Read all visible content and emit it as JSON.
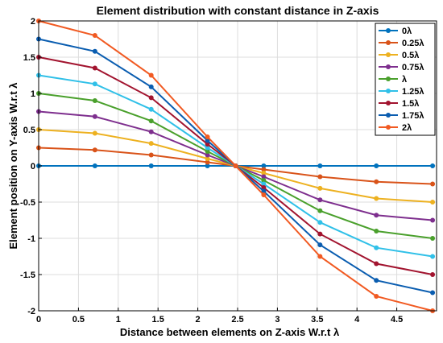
{
  "chart_data": {
    "type": "line",
    "title": "Element distribution with constant distance in Z-axis",
    "xlabel": "Distance between elements on Z-axis W.r.t λ",
    "ylabel": "Element position on Y-axis W.r.t λ",
    "xlim": [
      0,
      5
    ],
    "ylim": [
      -2,
      2
    ],
    "x_ticks": [
      "0",
      "0.5",
      "1",
      "1.5",
      "2",
      "2.5",
      "3",
      "3.5",
      "4",
      "4.5"
    ],
    "y_ticks": [
      "2",
      "1.5",
      "1",
      "0.5",
      "0",
      "-0.5",
      "-1",
      "-1.5",
      "-2"
    ],
    "grid": true,
    "legend_position": "top-right",
    "x": [
      0,
      0.707,
      1.414,
      2.121,
      2.475,
      2.828,
      3.536,
      4.243,
      4.95
    ],
    "series": [
      {
        "name": "0λ",
        "color": "#0072BD",
        "values": [
          0,
          0,
          0,
          0,
          0,
          0,
          0,
          0,
          0
        ]
      },
      {
        "name": "0.25λ",
        "color": "#D95319",
        "values": [
          0.25,
          0.22,
          0.15,
          0.05,
          0,
          -0.05,
          -0.15,
          -0.22,
          -0.25
        ]
      },
      {
        "name": "0.5λ",
        "color": "#EDB120",
        "values": [
          0.5,
          0.45,
          0.31,
          0.1,
          0,
          -0.1,
          -0.31,
          -0.45,
          -0.5
        ]
      },
      {
        "name": "0.75λ",
        "color": "#7E2F8E",
        "values": [
          0.75,
          0.68,
          0.47,
          0.15,
          0,
          -0.15,
          -0.47,
          -0.68,
          -0.75
        ]
      },
      {
        "name": "λ",
        "color": "#4AA02C",
        "values": [
          1.0,
          0.9,
          0.62,
          0.2,
          0,
          -0.2,
          -0.62,
          -0.9,
          -1.0
        ]
      },
      {
        "name": "1.25λ",
        "color": "#30C0E8",
        "values": [
          1.25,
          1.13,
          0.78,
          0.25,
          0,
          -0.25,
          -0.78,
          -1.13,
          -1.25
        ]
      },
      {
        "name": "1.5λ",
        "color": "#A2142F",
        "values": [
          1.5,
          1.35,
          0.94,
          0.3,
          0,
          -0.3,
          -0.94,
          -1.35,
          -1.5
        ]
      },
      {
        "name": "1.75λ",
        "color": "#0A5DB0",
        "values": [
          1.75,
          1.58,
          1.09,
          0.35,
          0,
          -0.35,
          -1.09,
          -1.58,
          -1.75
        ]
      },
      {
        "name": "2λ",
        "color": "#F15A22",
        "values": [
          2.0,
          1.8,
          1.25,
          0.4,
          0,
          -0.4,
          -1.25,
          -1.8,
          -2.0
        ]
      }
    ]
  }
}
